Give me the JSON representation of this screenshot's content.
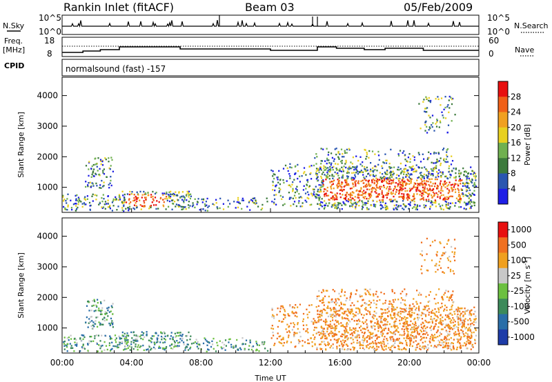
{
  "header": {
    "station": "Rankin Inlet (fitACF)",
    "beam": "Beam 03",
    "date": "05/Feb/2009"
  },
  "strip_nsky": {
    "left_label": "N.Sky",
    "right_label": "N.Search",
    "left_ticks": [
      "10^5",
      "10^0"
    ],
    "right_ticks": [
      "10^5",
      "10^0"
    ]
  },
  "strip_freq": {
    "left_label_1": "Freq.",
    "left_label_2": "[MHz]",
    "right_label": "Nave",
    "left_ticks": [
      "18",
      "8"
    ],
    "right_ticks": [
      "60",
      "0"
    ]
  },
  "strip_cpid": {
    "left_label": "CPID",
    "program": "normalsound (fast) -157"
  },
  "time_axis": {
    "xlabel": "Time UT",
    "ticks": [
      "00:00",
      "04:00",
      "08:00",
      "12:00",
      "16:00",
      "20:00",
      "00:00"
    ]
  },
  "chart_data": [
    {
      "type": "heatmap",
      "title": "",
      "ylabel": "Slant Range [km]",
      "xlabel": "",
      "xlim_hours": [
        0,
        24
      ],
      "ylim_km": [
        180,
        4600
      ],
      "y_ticks": [
        1000,
        2000,
        3000,
        4000
      ],
      "colorbar_label": "Power [dB]",
      "colorbar_ticks": [
        28,
        24,
        20,
        16,
        12,
        8,
        4
      ],
      "colorbar_colors": [
        "#1e1ee6",
        "#2a56b0",
        "#3c7a3c",
        "#70b050",
        "#e8d020",
        "#f0a020",
        "#f06018",
        "#e81010"
      ],
      "background": "#ffffff"
    },
    {
      "type": "heatmap",
      "title": "",
      "ylabel": "Slant Range [km]",
      "xlabel": "Time UT",
      "xlim_hours": [
        0,
        24
      ],
      "ylim_km": [
        180,
        4600
      ],
      "y_ticks": [
        1000,
        2000,
        3000,
        4000
      ],
      "colorbar_label": "Velocity [m s^-1]",
      "colorbar_ticks": [
        "1000",
        "500",
        "100",
        "25",
        "-25",
        "-100",
        "-500",
        "-1000"
      ],
      "colorbar_colors": [
        "#1e3ca8",
        "#2a6ea8",
        "#3c8a5a",
        "#6cc040",
        "#c8c8c8",
        "#f0a020",
        "#f07020",
        "#e81010"
      ],
      "background": "#ffffff"
    }
  ]
}
